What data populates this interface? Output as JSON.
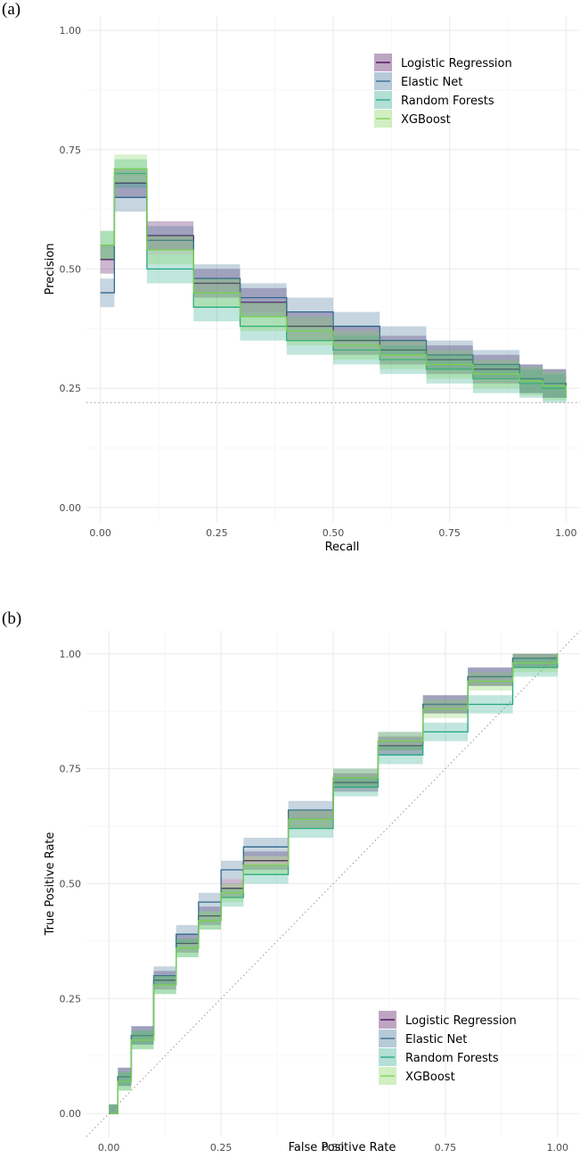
{
  "panels": {
    "a": {
      "label": "(a)"
    },
    "b": {
      "label": "(b)"
    }
  },
  "legend": {
    "entries": [
      {
        "name": "Logistic Regression",
        "color": "#440154"
      },
      {
        "name": "Elastic Net",
        "color": "#31688e"
      },
      {
        "name": "Random Forests",
        "color": "#21a585"
      },
      {
        "name": "XGBoost",
        "color": "#7ad151"
      }
    ]
  },
  "chart_data": [
    {
      "type": "line",
      "title": "",
      "xlabel": "Recall",
      "ylabel": "Precision",
      "xlim": [
        -0.03,
        1.03
      ],
      "ylim": [
        -0.03,
        1.03
      ],
      "xticks": [
        "0.00",
        "0.25",
        "0.50",
        "0.75",
        "1.00"
      ],
      "yticks": [
        "0.00",
        "0.25",
        "0.50",
        "0.75",
        "1.00"
      ],
      "reference_line": {
        "style": "dotted-horizontal",
        "y": 0.22
      },
      "ribbon_halfwidth": 0.03,
      "legend_position": "top-right",
      "series": [
        {
          "name": "Logistic Regression",
          "x": [
            0,
            0.03,
            0.1,
            0.2,
            0.3,
            0.4,
            0.5,
            0.6,
            0.7,
            0.8,
            0.9,
            0.95,
            1.0
          ],
          "y": [
            0.52,
            0.68,
            0.57,
            0.47,
            0.43,
            0.38,
            0.35,
            0.33,
            0.31,
            0.29,
            0.27,
            0.26,
            0.235
          ]
        },
        {
          "name": "Elastic Net",
          "x": [
            0,
            0.03,
            0.1,
            0.2,
            0.3,
            0.4,
            0.5,
            0.6,
            0.7,
            0.8,
            0.9,
            0.95,
            1.0
          ],
          "y": [
            0.45,
            0.65,
            0.56,
            0.48,
            0.44,
            0.41,
            0.38,
            0.35,
            0.32,
            0.3,
            0.27,
            0.26,
            0.24
          ]
        },
        {
          "name": "Random Forests",
          "x": [
            0,
            0.03,
            0.1,
            0.2,
            0.3,
            0.4,
            0.5,
            0.6,
            0.7,
            0.8,
            0.9,
            0.95,
            1.0
          ],
          "y": [
            0.55,
            0.7,
            0.5,
            0.42,
            0.38,
            0.35,
            0.33,
            0.31,
            0.29,
            0.27,
            0.26,
            0.25,
            0.23
          ]
        },
        {
          "name": "XGBoost",
          "x": [
            0,
            0.03,
            0.1,
            0.2,
            0.3,
            0.4,
            0.5,
            0.6,
            0.7,
            0.8,
            0.9,
            0.95,
            1.0
          ],
          "y": [
            0.55,
            0.71,
            0.54,
            0.45,
            0.4,
            0.37,
            0.34,
            0.32,
            0.3,
            0.28,
            0.265,
            0.255,
            0.232
          ]
        }
      ]
    },
    {
      "type": "line",
      "title": "",
      "xlabel": "False Positive Rate",
      "ylabel": "True Positive Rate",
      "xlim": [
        -0.05,
        1.05
      ],
      "ylim": [
        -0.05,
        1.05
      ],
      "xticks": [
        "0.00",
        "0.25",
        "0.50",
        "0.75",
        "1.00"
      ],
      "yticks": [
        "0.00",
        "0.25",
        "0.50",
        "0.75",
        "1.00"
      ],
      "reference_line": {
        "style": "dotted-diagonal",
        "slope": 1,
        "intercept": 0
      },
      "ribbon_halfwidth": 0.02,
      "legend_position": "bottom-right",
      "series": [
        {
          "name": "Logistic Regression",
          "x": [
            0,
            0.02,
            0.05,
            0.1,
            0.15,
            0.2,
            0.25,
            0.3,
            0.4,
            0.5,
            0.6,
            0.7,
            0.8,
            0.9,
            1.0
          ],
          "y": [
            0,
            0.08,
            0.17,
            0.29,
            0.37,
            0.43,
            0.49,
            0.55,
            0.64,
            0.72,
            0.8,
            0.89,
            0.95,
            0.99,
            1.0
          ]
        },
        {
          "name": "Elastic Net",
          "x": [
            0,
            0.02,
            0.05,
            0.1,
            0.15,
            0.2,
            0.25,
            0.3,
            0.4,
            0.5,
            0.6,
            0.7,
            0.8,
            0.9,
            1.0
          ],
          "y": [
            0,
            0.08,
            0.17,
            0.3,
            0.39,
            0.46,
            0.53,
            0.58,
            0.66,
            0.73,
            0.81,
            0.89,
            0.95,
            0.99,
            1.0
          ]
        },
        {
          "name": "Random Forests",
          "x": [
            0,
            0.02,
            0.05,
            0.1,
            0.15,
            0.2,
            0.25,
            0.3,
            0.4,
            0.5,
            0.6,
            0.7,
            0.8,
            0.9,
            1.0
          ],
          "y": [
            0,
            0.07,
            0.16,
            0.28,
            0.36,
            0.42,
            0.47,
            0.52,
            0.62,
            0.71,
            0.78,
            0.83,
            0.89,
            0.97,
            1.0
          ]
        },
        {
          "name": "XGBoost",
          "x": [
            0,
            0.02,
            0.05,
            0.1,
            0.15,
            0.2,
            0.25,
            0.3,
            0.4,
            0.5,
            0.6,
            0.7,
            0.8,
            0.9,
            1.0
          ],
          "y": [
            0,
            0.07,
            0.16,
            0.28,
            0.36,
            0.42,
            0.48,
            0.54,
            0.64,
            0.73,
            0.81,
            0.88,
            0.94,
            0.98,
            1.0
          ]
        }
      ]
    }
  ]
}
